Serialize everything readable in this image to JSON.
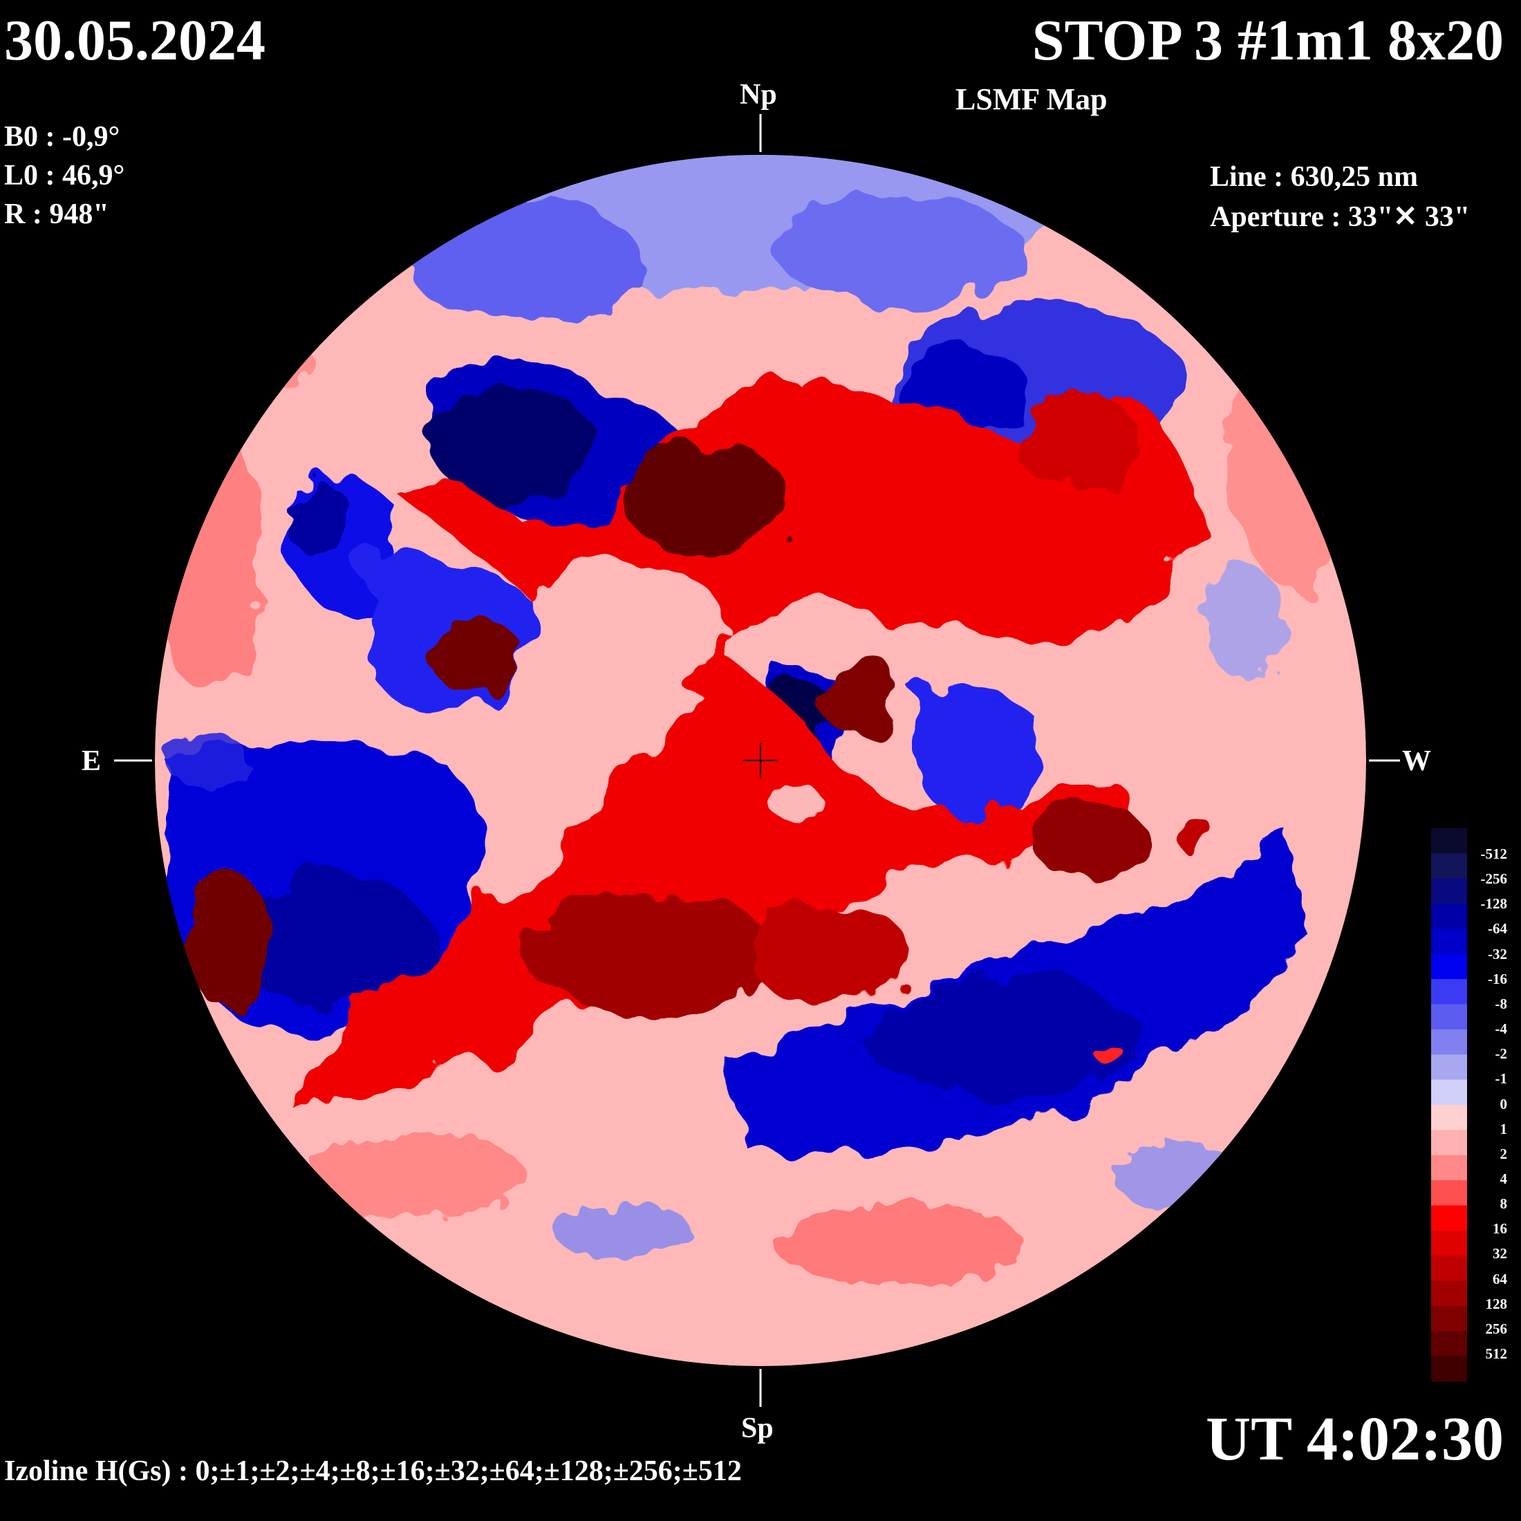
{
  "header": {
    "date": "30.05.2024",
    "observation": "STOP 3 #1m1 8x20",
    "map_type": "LSMF  Map"
  },
  "params": {
    "b0": "B0 : -0,9°",
    "l0": "L0 : 46,9°",
    "r": "R  : 948\""
  },
  "instrument": {
    "line": "Line :  630,25 nm",
    "aperture": "Aperture : 33\"✕ 33\""
  },
  "orientation": {
    "north": "Np",
    "south": "Sp",
    "east": "E",
    "west": "W"
  },
  "time": "UT 4:02:30",
  "izoline": "Izoline H(Gs) : 0;±1;±2;±4;±8;±16;±32;±64;±128;±256;±512",
  "colorbar": {
    "levels": [
      "-512",
      "-256",
      "-128",
      "-64",
      "-32",
      "-16",
      "-8",
      "-4",
      "-2",
      "-1",
      "0",
      "1",
      "2",
      "4",
      "8",
      "16",
      "32",
      "64",
      "128",
      "256",
      "512"
    ],
    "colors": {
      "negative": [
        "#0a0a2e",
        "#14145a",
        "#0a0a80",
        "#0000a8",
        "#0000c8",
        "#0000f0",
        "#3b3bf5",
        "#5c5cf0",
        "#8080f0",
        "#a8a8f0",
        "#d0d0f8"
      ],
      "positive": [
        "#ffd0d0",
        "#ffb0b0",
        "#ff8888",
        "#ff5050",
        "#ff0000",
        "#e00000",
        "#c00000",
        "#a00000",
        "#800000",
        "#600000",
        "#400000"
      ]
    }
  }
}
